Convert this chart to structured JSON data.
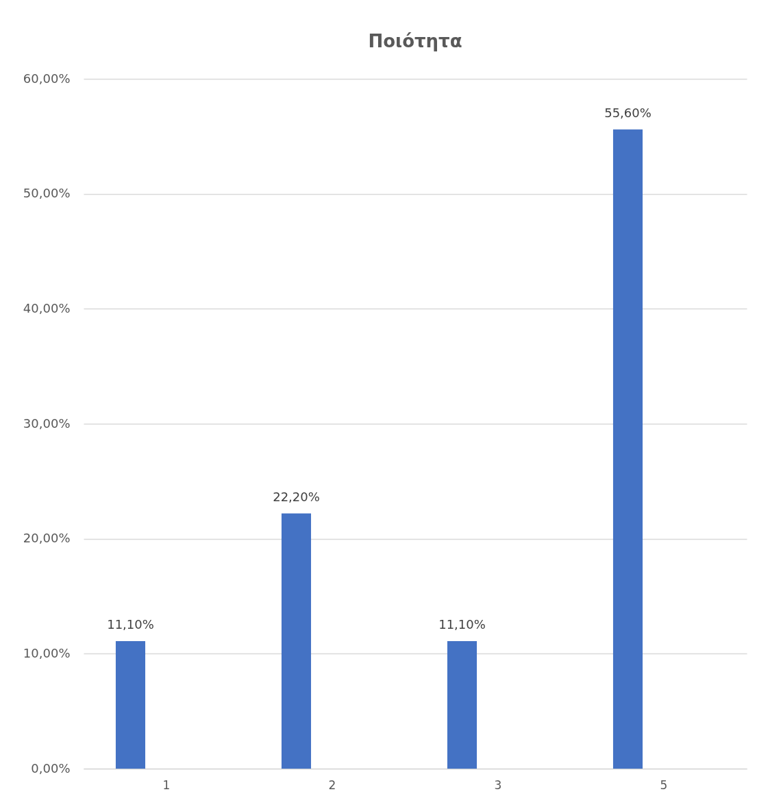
{
  "chart_data": {
    "type": "bar",
    "title": "Ποιότητα",
    "categories": [
      "1",
      "2",
      "3",
      "5"
    ],
    "values": [
      11.1,
      22.2,
      11.1,
      55.6
    ],
    "value_labels": [
      "11,10%",
      "22,20%",
      "11,10%",
      "55,60%"
    ],
    "color": "#4472c4",
    "ylim": [
      0,
      60
    ],
    "yticks": [
      {
        "value": 0,
        "label": "0,00%"
      },
      {
        "value": 10,
        "label": "10,00%"
      },
      {
        "value": 20,
        "label": "20,00%"
      },
      {
        "value": 30,
        "label": "30,00%"
      },
      {
        "value": 40,
        "label": "40,00%"
      },
      {
        "value": 50,
        "label": "50,00%"
      },
      {
        "value": 60,
        "label": "60,00%"
      }
    ],
    "grid": "y"
  }
}
